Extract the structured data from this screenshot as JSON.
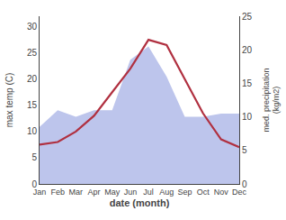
{
  "chart_data": {
    "type": "line",
    "categories": [
      "Jan",
      "Feb",
      "Mar",
      "Apr",
      "May",
      "Jun",
      "Jul",
      "Aug",
      "Sep",
      "Oct",
      "Nov",
      "Dec"
    ],
    "series": [
      {
        "type": "area",
        "axis": "y2",
        "color": "#bdc5ec",
        "values": [
          8.5,
          11.0,
          10.0,
          11.0,
          11.0,
          18.5,
          20.5,
          16.0,
          10.0,
          10.0,
          10.5,
          10.5
        ]
      },
      {
        "type": "line",
        "color": "#b03040",
        "values": [
          7.5,
          8.0,
          10.0,
          13.0,
          17.5,
          22.0,
          27.5,
          26.5,
          20.0,
          13.5,
          8.5,
          7.0
        ]
      }
    ],
    "xlabel": "date (month)",
    "ylabel": "max temp (C)",
    "y2label": "med. precipitation\n(kg/m2)",
    "ylim": [
      0,
      32
    ],
    "yticks": [
      0,
      5,
      10,
      15,
      20,
      25,
      30
    ],
    "y2lim": [
      0,
      25
    ],
    "y2ticks": [
      0,
      5,
      10,
      15,
      20,
      25
    ],
    "grid": false
  }
}
